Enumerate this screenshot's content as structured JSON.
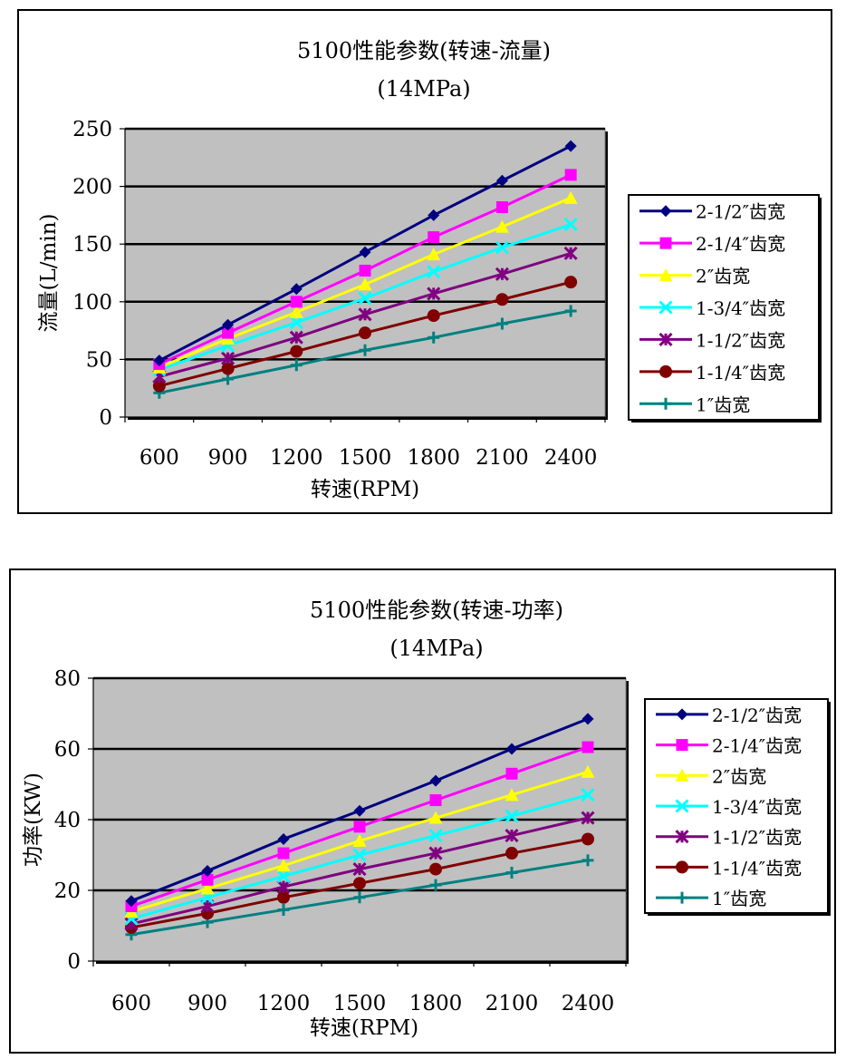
{
  "chart_data": [
    {
      "type": "line",
      "title": "5100性能参数(转速-流量)",
      "subtitle": "(14MPa)",
      "xlabel": "转速(RPM)",
      "ylabel": "流量(L/min)",
      "categories": [
        "600",
        "900",
        "1200",
        "1500",
        "1800",
        "2100",
        "2400"
      ],
      "ylim": [
        0,
        250
      ],
      "yticks": [
        "0",
        "50",
        "100",
        "150",
        "200",
        "250"
      ],
      "grid": true,
      "legend_position": "right",
      "series": [
        {
          "name": "2-1/2″齿宽",
          "color": "#000080",
          "marker": "diamond",
          "values": [
            49,
            80,
            111,
            143,
            175,
            205,
            235
          ]
        },
        {
          "name": "2-1/4″齿宽",
          "color": "#FF00FF",
          "marker": "square",
          "values": [
            46,
            73,
            100,
            127,
            156,
            182,
            210
          ]
        },
        {
          "name": "2″齿宽",
          "color": "#FFFF00",
          "marker": "triangle",
          "values": [
            43,
            68,
            91,
            115,
            141,
            165,
            190
          ]
        },
        {
          "name": "1-3/4″齿宽",
          "color": "#00FFFF",
          "marker": "x",
          "values": [
            41,
            62,
            82,
            103,
            126,
            147,
            167
          ]
        },
        {
          "name": "1-1/2″齿宽",
          "color": "#800080",
          "marker": "star",
          "values": [
            35,
            51,
            69,
            89,
            107,
            124,
            142
          ]
        },
        {
          "name": "1-1/4″齿宽",
          "color": "#800000",
          "marker": "circle",
          "values": [
            27,
            42,
            57,
            73,
            88,
            102,
            117
          ]
        },
        {
          "name": "1″齿宽",
          "color": "#008080",
          "marker": "plus",
          "values": [
            21,
            33,
            45,
            58,
            69,
            81,
            92
          ]
        }
      ]
    },
    {
      "type": "line",
      "title": "5100性能参数(转速-功率)",
      "subtitle": "(14MPa)",
      "xlabel": "转速(RPM)",
      "ylabel": "功率(KW)",
      "categories": [
        "600",
        "900",
        "1200",
        "1500",
        "1800",
        "2100",
        "2400"
      ],
      "ylim": [
        0,
        80
      ],
      "yticks": [
        "0",
        "20",
        "40",
        "60",
        "80"
      ],
      "grid": true,
      "legend_position": "right",
      "series": [
        {
          "name": "2-1/2″齿宽",
          "color": "#000080",
          "marker": "diamond",
          "values": [
            17,
            25.5,
            34.5,
            42.5,
            51,
            60,
            68.5
          ]
        },
        {
          "name": "2-1/4″齿宽",
          "color": "#FF00FF",
          "marker": "square",
          "values": [
            15.5,
            23,
            30.5,
            38,
            45.5,
            53,
            60.5
          ]
        },
        {
          "name": "2″齿宽",
          "color": "#FFFF00",
          "marker": "triangle",
          "values": [
            14,
            20.5,
            27,
            34,
            40.5,
            47,
            53.5
          ]
        },
        {
          "name": "1-3/4″齿宽",
          "color": "#00FFFF",
          "marker": "x",
          "values": [
            12,
            18,
            24,
            30,
            35.5,
            41,
            47
          ]
        },
        {
          "name": "1-1/2″齿宽",
          "color": "#800080",
          "marker": "star",
          "values": [
            10.5,
            15.5,
            21,
            26,
            30.5,
            35.5,
            40.5
          ]
        },
        {
          "name": "1-1/4″齿宽",
          "color": "#800000",
          "marker": "circle",
          "values": [
            9.5,
            13.5,
            18,
            22,
            26,
            30.5,
            34.5
          ]
        },
        {
          "name": "1″齿宽",
          "color": "#008080",
          "marker": "plus",
          "values": [
            7.5,
            11,
            14.5,
            18,
            21.5,
            25,
            28.5
          ]
        }
      ]
    }
  ]
}
